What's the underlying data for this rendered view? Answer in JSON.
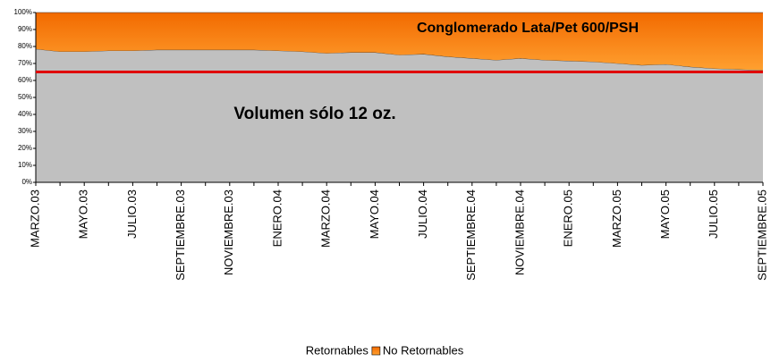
{
  "chart_data": {
    "type": "stacked_area",
    "categories": [
      "MARZO.03",
      null,
      "MAYO.03",
      null,
      "JULIO.03",
      null,
      "SEPTIEMBRE.03",
      null,
      "NOVIEMBRE.03",
      null,
      "ENERO.04",
      null,
      "MARZO.04",
      null,
      "MAYO.04",
      null,
      "JULIO.04",
      null,
      "SEPTIEMBRE.04",
      null,
      "NOVIEMBRE.04",
      null,
      "ENERO.05",
      null,
      "MARZO.05",
      null,
      "MAYO.05",
      null,
      "JULIO.05",
      null,
      "SEPTIEMBRE.05"
    ],
    "series": [
      {
        "name": "Retornables",
        "color": "#c0c0c0",
        "values": [
          78.5,
          77,
          77,
          77.5,
          77.5,
          78,
          78,
          78,
          78,
          78,
          77.5,
          77,
          76,
          76.5,
          76.5,
          75,
          75.5,
          74,
          73,
          72,
          73,
          72,
          71.5,
          71,
          70,
          69,
          69.5,
          68,
          67,
          66.5,
          66
        ]
      },
      {
        "name": "No Retornables",
        "color": "#ff8000",
        "values": [
          21.5,
          23,
          23,
          22.5,
          22.5,
          22,
          22,
          22,
          22,
          22,
          22.5,
          23,
          24,
          23.5,
          23.5,
          25,
          24.5,
          26,
          27,
          28,
          27,
          28,
          28.5,
          29,
          30,
          31,
          30.5,
          32,
          33,
          33.5,
          34
        ]
      }
    ],
    "ylim": [
      0,
      100
    ],
    "yticks": [
      {
        "value": 0,
        "label": "0%"
      },
      {
        "value": 10,
        "label": "10%"
      },
      {
        "value": 20,
        "label": "20%"
      },
      {
        "value": 30,
        "label": "30%"
      },
      {
        "value": 40,
        "label": "40%"
      },
      {
        "value": 50,
        "label": "50%"
      },
      {
        "value": 60,
        "label": "60%"
      },
      {
        "value": 70,
        "label": "70%"
      },
      {
        "value": 80,
        "label": "80%"
      },
      {
        "value": 90,
        "label": "90%"
      },
      {
        "value": 100,
        "label": "100%"
      }
    ],
    "reference_line": {
      "value": 65,
      "color": "#e00000"
    },
    "annotations": [
      "Conglomerado Lata/Pet 600/PSH",
      "Volumen sólo 12 oz."
    ],
    "legend": "bottom"
  }
}
